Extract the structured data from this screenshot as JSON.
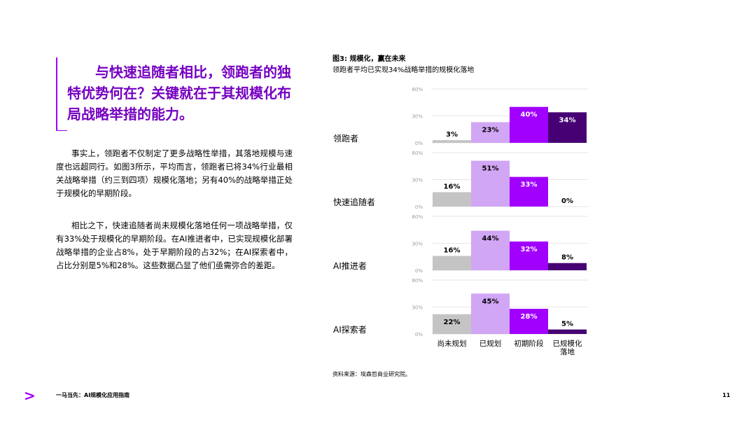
{
  "quote": "与快速追随者相比，领跑者的独特优势何在？关键就在于其规模化布局战略举措的能力。",
  "paragraphs": [
    "事实上，领跑者不仅制定了更多战略性举措，其落地规模与速度也远超同行。如图3所示，平均而言，领跑者已将34%行业最相关战略举措（约三到四项）规模化落地；另有40%的战略举措正处于规模化的早期阶段。",
    "相比之下，快速追随者尚未规模化落地任何一项战略举措，仅有33%处于规模化的早期阶段。在AI推进者中，已实现规模化部署战略举措的企业占8%，处于早期阶段的占32%；在AI探索者中，占比分别是5%和28%。这些数据凸显了他们亟需弥合的差距。"
  ],
  "figure": {
    "title": "图3: 规模化，赢在未来",
    "subtitle": "领跑者平均已实现34%战略举措的规模化落地",
    "source": "资料来源：埃森哲商业研究院。"
  },
  "footer": {
    "logo_glyph": ">",
    "title": "一马当先：AI规模化应用指南",
    "page": "11"
  },
  "chart_data": {
    "type": "bar",
    "categories": [
      "尚未规划",
      "已规划",
      "初期阶段",
      "已规模化\n落地"
    ],
    "ylim": [
      0,
      60
    ],
    "yticks": [
      "0%",
      "30%",
      "60%"
    ],
    "colors": [
      "#c4c4c4",
      "#d1a6f5",
      "#a100ff",
      "#460073"
    ],
    "label_colors": [
      "#000000",
      "#000000",
      "#ffffff",
      "#ffffff"
    ],
    "panels": [
      {
        "name": "领跑者",
        "values": [
          3,
          23,
          40,
          34
        ],
        "labels": [
          "3%",
          "23%",
          "40%",
          "34%"
        ]
      },
      {
        "name": "快速追随者",
        "values": [
          16,
          51,
          33,
          0
        ],
        "labels": [
          "16%",
          "51%",
          "33%",
          "0%"
        ]
      },
      {
        "name": "AI推进者",
        "values": [
          16,
          44,
          32,
          8
        ],
        "labels": [
          "16%",
          "44%",
          "32%",
          "8%"
        ]
      },
      {
        "name": "AI探索者",
        "values": [
          22,
          45,
          28,
          5
        ],
        "labels": [
          "22%",
          "45%",
          "28%",
          "5%"
        ]
      }
    ]
  }
}
